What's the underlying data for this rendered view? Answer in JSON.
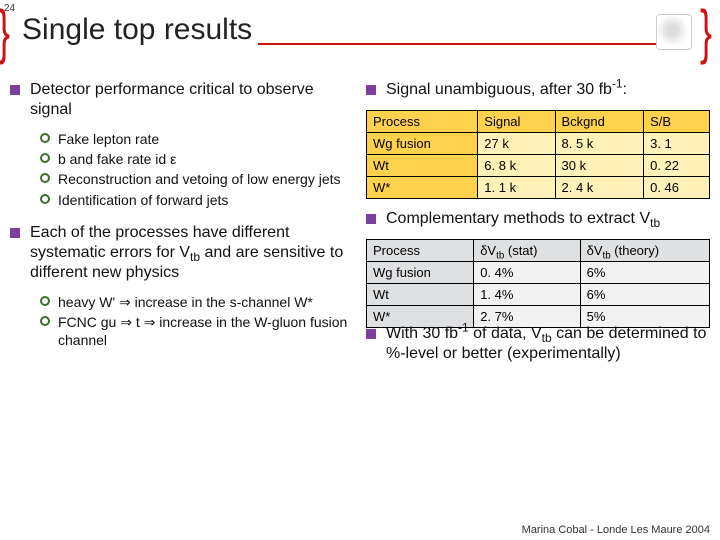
{
  "page_number": "24",
  "title": "Single top results",
  "left": {
    "b1": "Detector performance critical to observe signal",
    "b1_items": [
      "Fake lepton rate",
      "b and fake rate id ε",
      "Reconstruction and vetoing of low energy jets",
      "Identification of forward jets"
    ],
    "b2_pre": "Each of the processes have different systematic errors for V",
    "b2_sub": "tb",
    "b2_post": " and are sensitive to different new physics",
    "b2_items_html": [
      "heavy W' <span class='impl'>⇒</span> increase in the s-channel W*",
      "FCNC gu <span class='impl'>⇒</span> t  <span class='impl'>⇒</span> increase in the W-gluon fusion channel"
    ]
  },
  "right": {
    "r1_pre": "Signal unambiguous, after 30 fb",
    "r1_sup": "-1",
    "r1_post": ":",
    "t1": {
      "headers": [
        "Process",
        "Signal",
        "Bckgnd",
        "S/B"
      ],
      "rows": [
        [
          "Wg fusion",
          "27 k",
          "8. 5 k",
          "3. 1"
        ],
        [
          "Wt",
          "6. 8 k",
          "30 k",
          "0. 22"
        ],
        [
          "W*",
          "1. 1 k",
          "2. 4 k",
          "0. 46"
        ]
      ]
    },
    "r2_pre": "Complementary methods to extract V",
    "r2_sub": "tb",
    "t2": {
      "headers_html": [
        "Process",
        "δV<sub>tb</sub> (stat)",
        "δV<sub>tb</sub> (theory)"
      ],
      "rows": [
        [
          "Wg fusion",
          "0. 4%",
          "6%"
        ],
        [
          "Wt",
          "1. 4%",
          "6%"
        ],
        [
          "W*",
          "2. 7%",
          "5%"
        ]
      ]
    },
    "r3_html": "With 30 fb<sup>-1</sup> of data, V<sub>tb</sub> can be determined to %-level or better (experimentally)"
  },
  "footer": "Marina Cobal -   Londe Les Maure 2004"
}
